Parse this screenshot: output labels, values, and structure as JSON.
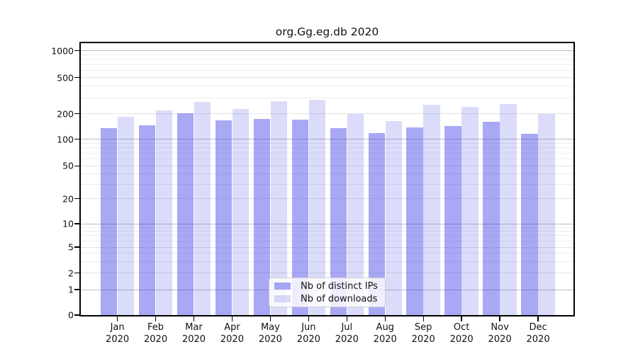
{
  "chart_data": {
    "type": "bar",
    "title": "org.Gg.eg.db 2020",
    "categories": [
      "Jan",
      "Feb",
      "Mar",
      "Apr",
      "May",
      "Jun",
      "Jul",
      "Aug",
      "Sep",
      "Oct",
      "Nov",
      "Dec"
    ],
    "x_sublabel": "2020",
    "series": [
      {
        "name": "Nb of distinct IPs",
        "color": "rgba(62,62,230,0.45)",
        "values": [
          136,
          145,
          202,
          168,
          175,
          170,
          136,
          118,
          137,
          144,
          160,
          116
        ]
      },
      {
        "name": "Nb of downloads",
        "color": "rgba(62,62,230,0.19)",
        "values": [
          184,
          218,
          268,
          225,
          276,
          285,
          199,
          163,
          250,
          240,
          257,
          198
        ]
      }
    ],
    "y_axis": {
      "scale": "symlog",
      "ticks": [
        0,
        1,
        2,
        5,
        10,
        20,
        50,
        100,
        200,
        500,
        1000
      ],
      "ylim": [
        0,
        1230
      ]
    },
    "x_axis": {
      "ticks_per_month": true
    },
    "legend": {
      "position": "lower center"
    },
    "grid": true,
    "colors": {
      "major_gridline": "#bcbcbc",
      "labeled_gridline": "#e3e3e3",
      "minor_gridline": "#ededed",
      "axis": "#000000",
      "background": "#ffffff"
    }
  }
}
